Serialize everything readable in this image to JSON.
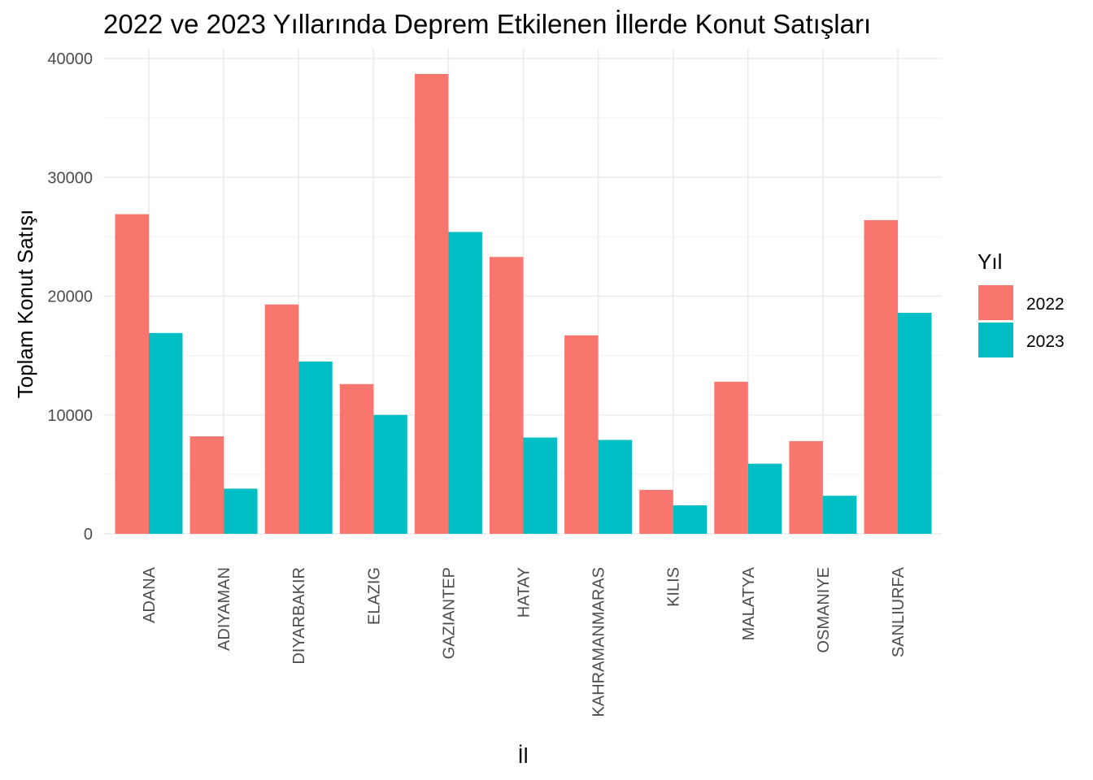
{
  "chart_data": {
    "type": "bar",
    "title": "2022 ve 2023 Yıllarında Deprem Etkilenen İllerde Konut Satışları",
    "xlabel": "İl",
    "ylabel": "Toplam Konut Satışı",
    "ylim": [
      0,
      40000
    ],
    "yticks": [
      "0",
      "10000",
      "20000",
      "30000",
      "40000"
    ],
    "grid": true,
    "legend": {
      "title": "Yıl",
      "placement": "right"
    },
    "categories": [
      "ADANA",
      "ADIYAMAN",
      "DIYARBAKIR",
      "ELAZIG",
      "GAZIANTEP",
      "HATAY",
      "KAHRAMANMARAS",
      "KILIS",
      "MALATYA",
      "OSMANIYE",
      "SANLIURFA"
    ],
    "series": [
      {
        "name": "2022",
        "color": "#F8766D",
        "values": [
          26900,
          8200,
          19300,
          12600,
          38700,
          23300,
          16700,
          3700,
          12800,
          7800,
          26400
        ]
      },
      {
        "name": "2023",
        "color": "#00BFC4",
        "values": [
          16900,
          3800,
          14500,
          10000,
          25400,
          8100,
          7900,
          2400,
          5900,
          3200,
          18600
        ]
      }
    ]
  }
}
